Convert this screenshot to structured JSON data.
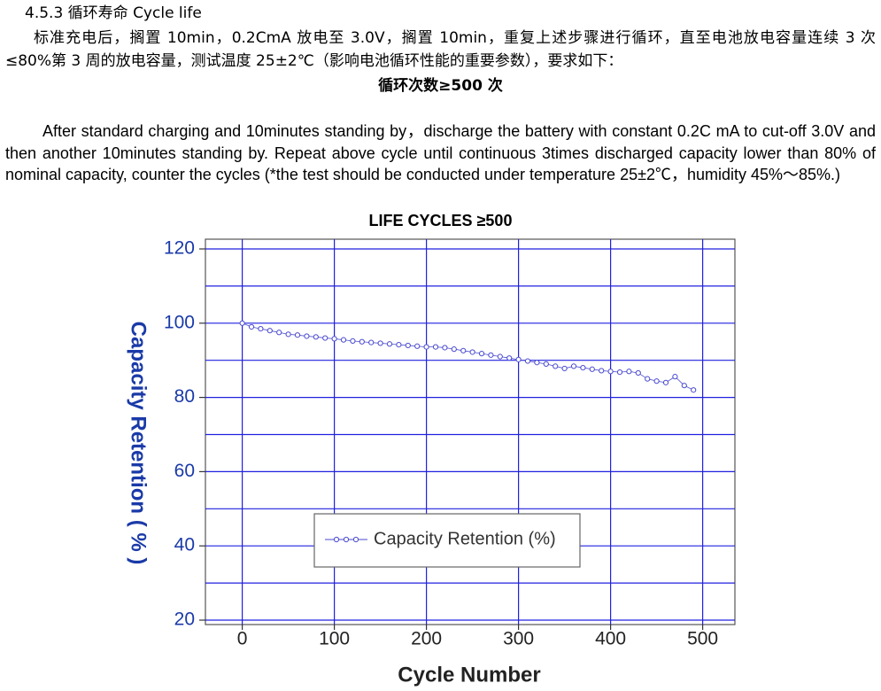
{
  "heading": "4.5.3 循环寿命  Cycle life",
  "zh_paragraph": "标准充电后，搁置 10min，0.2CmA 放电至 3.0V，搁置 10min，重复上述步骤进行循环，直至电池放电容量连续 3 次≤80%第 3 周的放电容量，测试温度 25±2℃（影响电池循环性能的重要参数），要求如下：",
  "zh_requirement": "循环次数≥500 次",
  "en_paragraph": "After standard charging and 10minutes standing by，discharge the battery with constant 0.2C mA to cut-off 3.0V and then another 10minutes standing by. Repeat above cycle until continuous 3times discharged capacity lower than 80% of nominal capacity, counter the cycles (*the test should be conducted under temperature 25±2℃，humidity 45%～85%.)",
  "chart_data": {
    "type": "line",
    "title": "LIFE CYCLES ≥500",
    "xlabel": "Cycle Number",
    "ylabel": "Capacity Retention ( % )",
    "x": [
      0,
      10,
      20,
      30,
      40,
      50,
      60,
      70,
      80,
      90,
      100,
      110,
      120,
      130,
      140,
      150,
      160,
      170,
      180,
      190,
      200,
      210,
      220,
      230,
      240,
      250,
      260,
      270,
      280,
      290,
      300,
      310,
      320,
      330,
      340,
      350,
      360,
      370,
      380,
      390,
      400,
      410,
      420,
      430,
      440,
      450,
      460,
      470,
      480,
      490
    ],
    "series": [
      {
        "name": "Capacity Retention (%)",
        "color": "#4a4ad0",
        "values": [
          100,
          99,
          98.5,
          98,
          97.5,
          97,
          96.8,
          96.5,
          96.3,
          96,
          95.8,
          95.5,
          95.2,
          95,
          94.8,
          94.6,
          94.4,
          94.2,
          94,
          93.8,
          93.6,
          93.6,
          93.4,
          93,
          92.6,
          92.2,
          91.8,
          91.4,
          91,
          90.6,
          90.2,
          89.8,
          89.4,
          89,
          88.4,
          87.8,
          88.4,
          88,
          87.6,
          87.2,
          87,
          86.8,
          87,
          86.6,
          85,
          84.4,
          84,
          85.6,
          83.2,
          82
        ]
      }
    ],
    "xlim": [
      -40,
      535
    ],
    "ylim": [
      20,
      120
    ],
    "xticks": [
      0,
      100,
      200,
      300,
      400,
      500
    ],
    "yticks": [
      20,
      40,
      60,
      80,
      100,
      120
    ],
    "minor_yticks": [
      30,
      50,
      70,
      90,
      110
    ],
    "grid": true,
    "grid_color": "#2020e0",
    "tick_color": "#1a3aa8"
  }
}
